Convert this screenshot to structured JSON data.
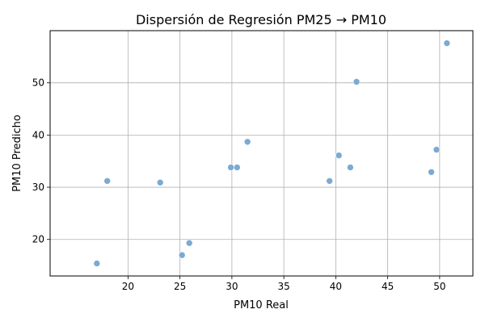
{
  "chart_data": {
    "type": "scatter",
    "title": "Dispersión de Regresión PM25 → PM10",
    "xlabel": "PM10 Real",
    "ylabel": "PM10 Predicho",
    "xlim": [
      12.5,
      53.2
    ],
    "ylim": [
      13.0,
      60.0
    ],
    "x_ticks": [
      20,
      25,
      30,
      35,
      40,
      45,
      50
    ],
    "y_ticks": [
      20,
      30,
      40,
      50
    ],
    "grid": true,
    "legend": "none",
    "point_color": "#7BAAD3",
    "points": [
      {
        "x": 17.0,
        "y": 15.4
      },
      {
        "x": 18.0,
        "y": 31.2
      },
      {
        "x": 23.1,
        "y": 30.9
      },
      {
        "x": 25.2,
        "y": 17.0
      },
      {
        "x": 25.9,
        "y": 19.3
      },
      {
        "x": 29.9,
        "y": 33.8
      },
      {
        "x": 30.5,
        "y": 33.8
      },
      {
        "x": 31.5,
        "y": 38.7
      },
      {
        "x": 39.4,
        "y": 31.2
      },
      {
        "x": 40.3,
        "y": 36.1
      },
      {
        "x": 41.4,
        "y": 33.8
      },
      {
        "x": 42.0,
        "y": 50.2
      },
      {
        "x": 49.2,
        "y": 32.9
      },
      {
        "x": 49.7,
        "y": 37.2
      },
      {
        "x": 50.7,
        "y": 57.6
      }
    ]
  }
}
